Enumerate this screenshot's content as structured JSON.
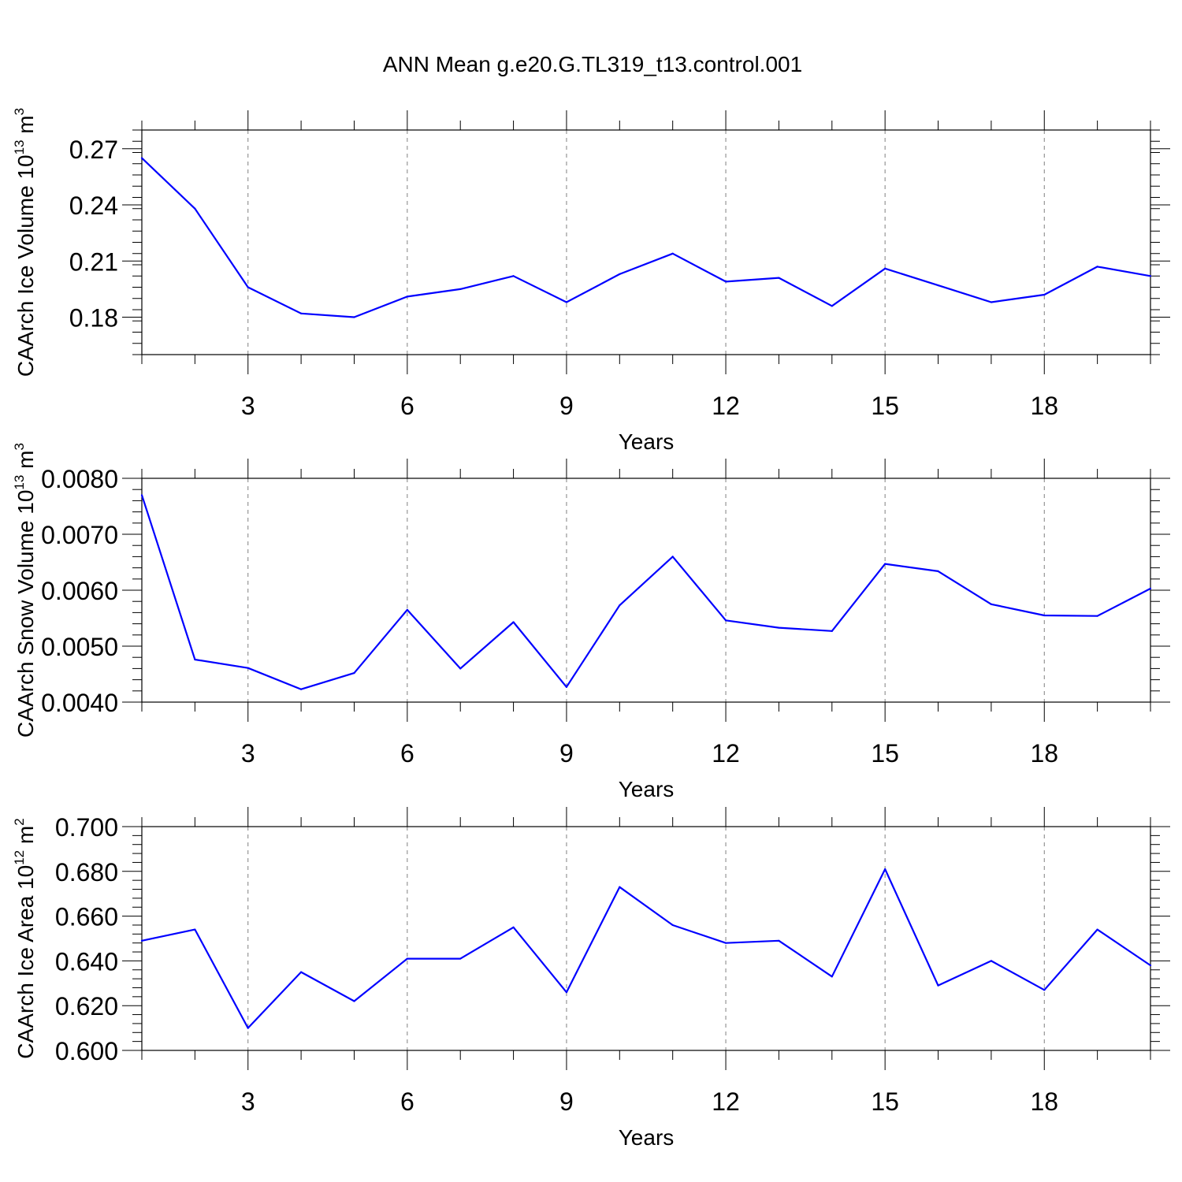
{
  "title": "ANN Mean g.e20.G.TL319_t13.control.001",
  "line_color": "#0000ff",
  "grid_color": "#808080",
  "chart_data": [
    {
      "type": "line",
      "ylabel_main": "CAArch Ice Volume 10",
      "ylabel_exp": "13",
      "ylabel_unit": " m",
      "ylabel_unit_exp": "3",
      "xlabel": "Years",
      "xlim": [
        1,
        20
      ],
      "ylim": [
        0.16,
        0.28
      ],
      "xticks": [
        3,
        6,
        9,
        12,
        15,
        18
      ],
      "xtick_labels": [
        "3",
        "6",
        "9",
        "12",
        "15",
        "18"
      ],
      "yticks": [
        0.18,
        0.21,
        0.24,
        0.27
      ],
      "ytick_labels": [
        "0.18",
        "0.21",
        "0.24",
        "0.27"
      ],
      "x": [
        1,
        2,
        3,
        4,
        5,
        6,
        7,
        8,
        9,
        10,
        11,
        12,
        13,
        14,
        15,
        16,
        17,
        18,
        19,
        20
      ],
      "y": [
        0.265,
        0.238,
        0.196,
        0.182,
        0.18,
        0.191,
        0.195,
        0.202,
        0.188,
        0.203,
        0.214,
        0.199,
        0.201,
        0.186,
        0.206,
        0.197,
        0.188,
        0.192,
        0.207,
        0.202
      ]
    },
    {
      "type": "line",
      "ylabel_main": "CAArch Snow Volume 10",
      "ylabel_exp": "13",
      "ylabel_unit": " m",
      "ylabel_unit_exp": "3",
      "xlabel": "Years",
      "xlim": [
        1,
        20
      ],
      "ylim": [
        0.004,
        0.008
      ],
      "xticks": [
        3,
        6,
        9,
        12,
        15,
        18
      ],
      "xtick_labels": [
        "3",
        "6",
        "9",
        "12",
        "15",
        "18"
      ],
      "yticks": [
        0.004,
        0.005,
        0.006,
        0.007,
        0.008
      ],
      "ytick_labels": [
        "0.0040",
        "0.0050",
        "0.0060",
        "0.0070",
        "0.0080"
      ],
      "x": [
        1,
        2,
        3,
        4,
        5,
        6,
        7,
        8,
        9,
        10,
        11,
        12,
        13,
        14,
        15,
        16,
        17,
        18,
        19,
        20
      ],
      "y": [
        0.0077,
        0.00476,
        0.00461,
        0.00423,
        0.00452,
        0.00565,
        0.0046,
        0.00543,
        0.00427,
        0.00573,
        0.0066,
        0.00546,
        0.00533,
        0.00527,
        0.00647,
        0.00634,
        0.00575,
        0.00555,
        0.00554,
        0.00603
      ]
    },
    {
      "type": "line",
      "ylabel_main": "CAArch Ice Area 10",
      "ylabel_exp": "12",
      "ylabel_unit": " m",
      "ylabel_unit_exp": "2",
      "xlabel": "Years",
      "xlim": [
        1,
        20
      ],
      "ylim": [
        0.6,
        0.7
      ],
      "xticks": [
        3,
        6,
        9,
        12,
        15,
        18
      ],
      "xtick_labels": [
        "3",
        "6",
        "9",
        "12",
        "15",
        "18"
      ],
      "yticks": [
        0.6,
        0.62,
        0.64,
        0.66,
        0.68,
        0.7
      ],
      "ytick_labels": [
        "0.600",
        "0.620",
        "0.640",
        "0.660",
        "0.680",
        "0.700"
      ],
      "x": [
        1,
        2,
        3,
        4,
        5,
        6,
        7,
        8,
        9,
        10,
        11,
        12,
        13,
        14,
        15,
        16,
        17,
        18,
        19,
        20
      ],
      "y": [
        0.649,
        0.654,
        0.61,
        0.635,
        0.622,
        0.641,
        0.641,
        0.655,
        0.626,
        0.673,
        0.656,
        0.648,
        0.649,
        0.633,
        0.681,
        0.629,
        0.64,
        0.627,
        0.654,
        0.638
      ]
    }
  ]
}
